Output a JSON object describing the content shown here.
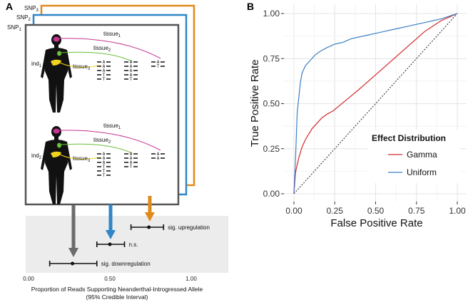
{
  "panel_a": {
    "letter": "A",
    "snps": [
      "SNP",
      "SNP",
      "SNP"
    ],
    "snp_subs": [
      "3",
      "2",
      "1"
    ],
    "colors": {
      "snp3": "#e08a1c",
      "snp2": "#2f86c8",
      "snp1": "#555555",
      "tissue1": "#c4358f",
      "tissue2": "#6abf3c",
      "tissue3": "#f1d21f",
      "body": "#111111",
      "brain": "#c4358f",
      "heart": "#6abf3c",
      "liver": "#f1d21f"
    },
    "individuals": [
      {
        "label": "ind",
        "sub": "1",
        "tissues": [
          {
            "label": "tissue",
            "sub": "1"
          },
          {
            "label": "tissue",
            "sub": "2"
          },
          {
            "label": "tissue",
            "sub": "3"
          }
        ],
        "reads": [
          [
            "A",
            "A",
            "A",
            "T",
            "T"
          ],
          [
            "A",
            "A",
            "A",
            "A",
            "T"
          ],
          [
            "A",
            "T"
          ]
        ]
      },
      {
        "label": "ind",
        "sub": "2",
        "tissues": [
          {
            "label": "tissue",
            "sub": "1"
          },
          {
            "label": "tissue",
            "sub": "2"
          },
          {
            "label": "tissue",
            "sub": "3"
          }
        ],
        "reads": [
          [
            "A",
            "A",
            "A",
            "T",
            "T",
            "T"
          ],
          [
            "A",
            "A",
            "A",
            "T"
          ],
          [
            "A",
            "A"
          ]
        ]
      }
    ],
    "estimates": [
      {
        "label": "sig. upregulation",
        "point": 0.74,
        "lo": 0.63,
        "hi": 0.83,
        "color": "#e08a1c"
      },
      {
        "label": "n.s.",
        "point": 0.5,
        "lo": 0.42,
        "hi": 0.59,
        "color": "#2f86c8"
      },
      {
        "label": "sig. downregulation",
        "point": 0.27,
        "lo": 0.13,
        "hi": 0.42,
        "color": "#555555"
      }
    ],
    "axis_ticks": [
      "0.00",
      "0.50",
      "1.00"
    ],
    "axis_values": [
      0,
      0.5,
      1
    ],
    "caption_line1": "Proportion of Reads Supporting Neanderthal-Introgressed Allele",
    "caption_line2": "(95% Credible Interval)"
  },
  "chart_data": {
    "type": "line",
    "panel_letter": "B",
    "title": "",
    "xlabel": "False Positive Rate",
    "ylabel": "True Positive Rate",
    "xlim": [
      0,
      1
    ],
    "ylim": [
      0,
      1
    ],
    "x_ticks": [
      "0.00",
      "0.25",
      "0.50",
      "0.75",
      "1.00"
    ],
    "y_ticks": [
      "0.00",
      "0.25",
      "0.50",
      "0.75",
      "1.00"
    ],
    "grid": true,
    "legend_placement": "lower-right",
    "legend_title": "Effect Distribution",
    "diagonal_reference": true,
    "series": [
      {
        "name": "Gamma",
        "color": "#d62728",
        "x": [
          0,
          0.01,
          0.03,
          0.05,
          0.07,
          0.09,
          0.11,
          0.14,
          0.17,
          0.2,
          0.24,
          0.28,
          0.32,
          0.36,
          0.4,
          0.45,
          0.5,
          0.55,
          0.6,
          0.65,
          0.7,
          0.75,
          0.8,
          0.85,
          0.9,
          0.95,
          1.0
        ],
        "y": [
          0,
          0.12,
          0.2,
          0.26,
          0.3,
          0.33,
          0.36,
          0.39,
          0.42,
          0.44,
          0.46,
          0.49,
          0.52,
          0.55,
          0.58,
          0.62,
          0.66,
          0.7,
          0.74,
          0.78,
          0.82,
          0.86,
          0.9,
          0.93,
          0.96,
          0.98,
          1.0
        ]
      },
      {
        "name": "Uniform",
        "color": "#3b7fc4",
        "x": [
          0,
          0.01,
          0.02,
          0.04,
          0.05,
          0.07,
          0.1,
          0.13,
          0.16,
          0.2,
          0.25,
          0.3,
          0.35,
          0.4,
          0.45,
          0.5,
          0.55,
          0.6,
          0.65,
          0.7,
          0.75,
          0.8,
          0.85,
          0.9,
          0.95,
          1.0
        ],
        "y": [
          0,
          0.2,
          0.45,
          0.62,
          0.67,
          0.71,
          0.74,
          0.77,
          0.79,
          0.81,
          0.83,
          0.84,
          0.86,
          0.87,
          0.88,
          0.89,
          0.9,
          0.91,
          0.92,
          0.93,
          0.94,
          0.95,
          0.96,
          0.97,
          0.985,
          1.0
        ]
      }
    ]
  }
}
